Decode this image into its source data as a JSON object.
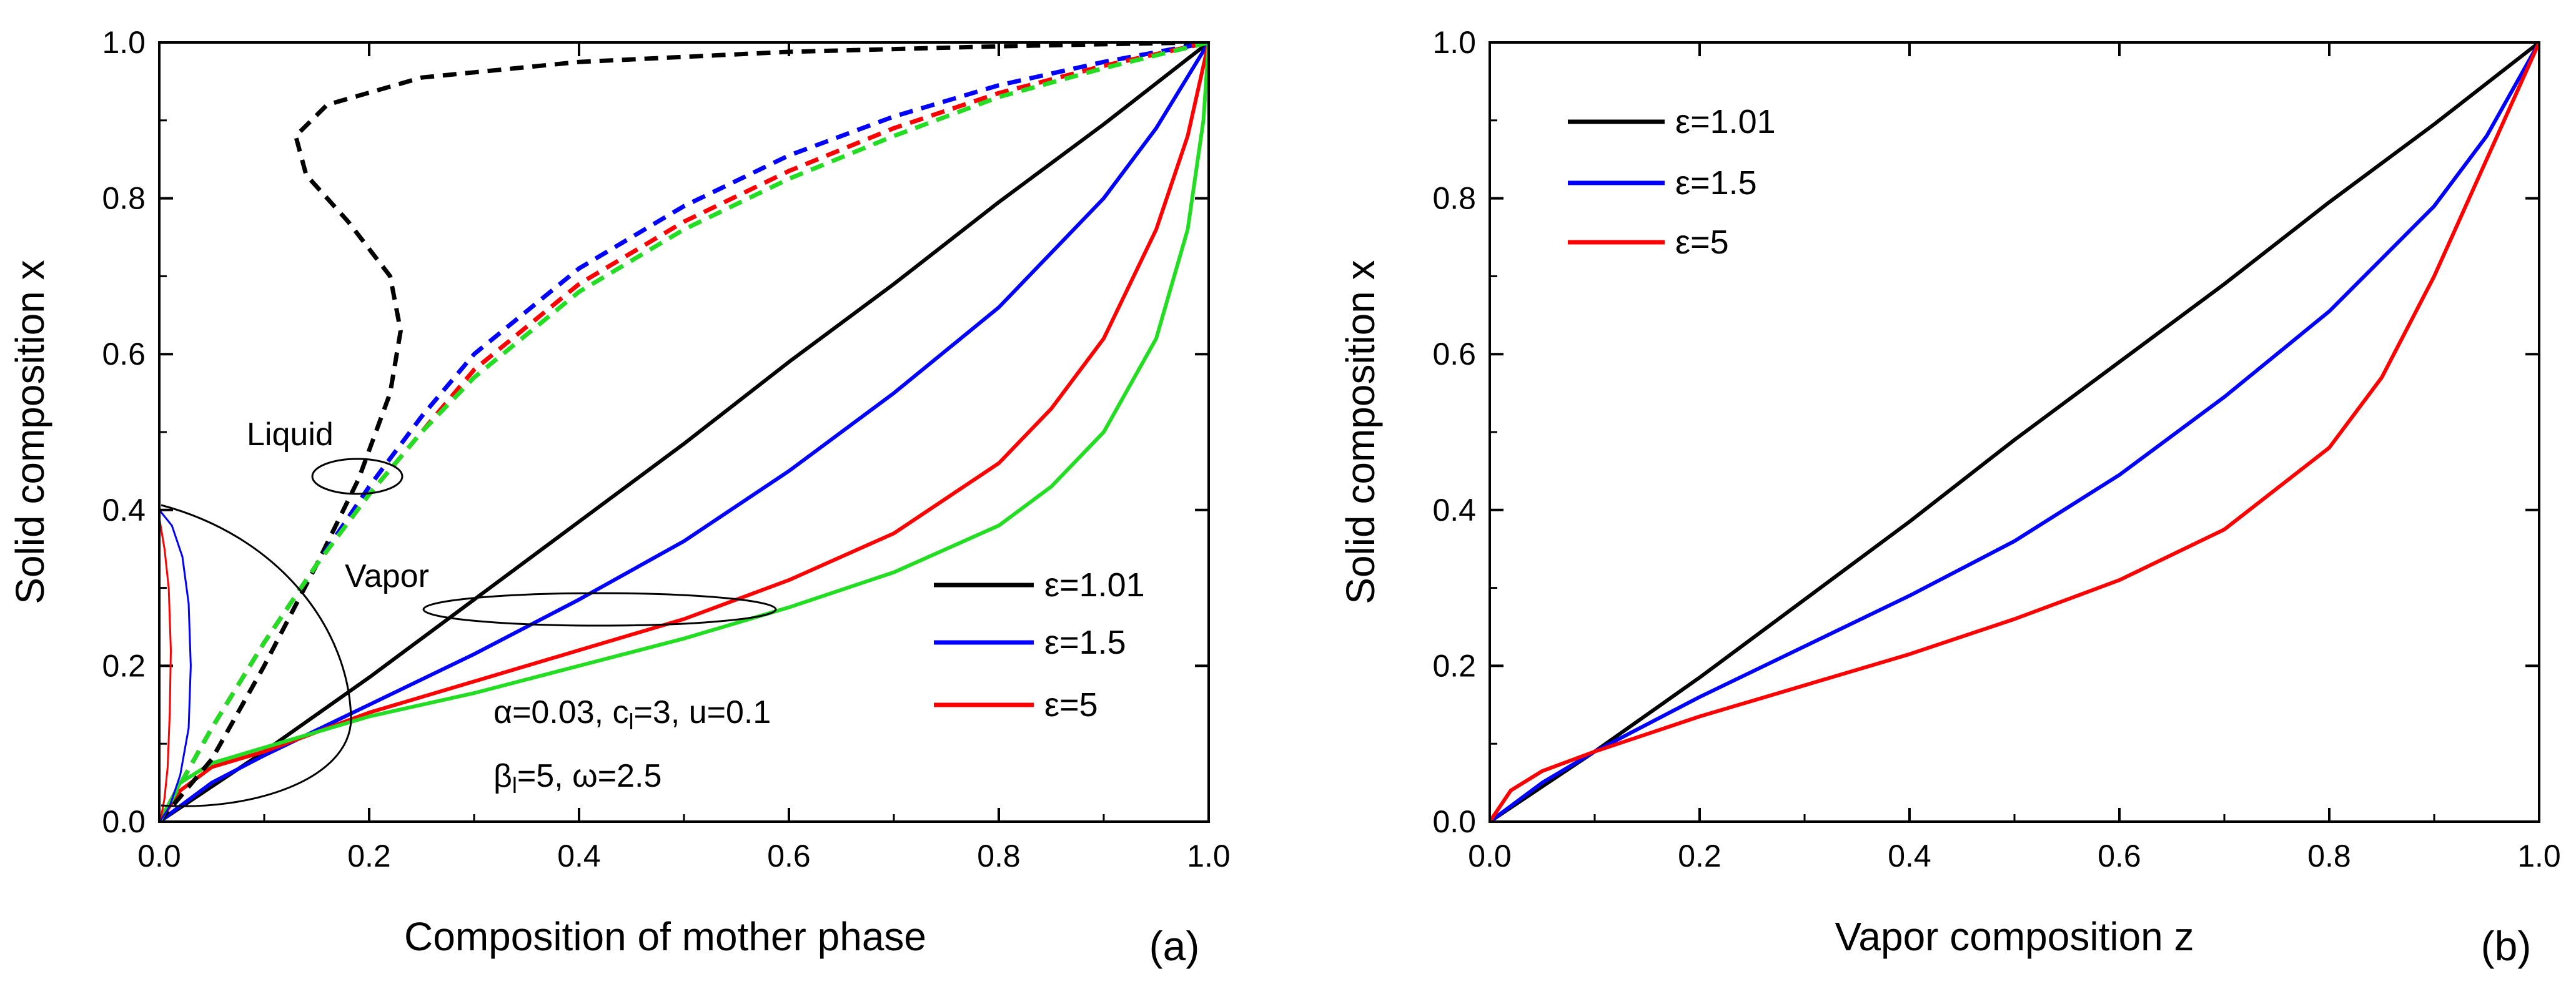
{
  "chart_data": [
    {
      "panel": "a",
      "type": "line",
      "panel_label": "(a)",
      "xlabel": "Composition of mother phase",
      "ylabel": "Solid composition x",
      "xlim": [
        0.0,
        1.0
      ],
      "ylim": [
        0.0,
        1.0
      ],
      "xticks": [
        "0.0",
        "0.2",
        "0.4",
        "0.6",
        "0.8",
        "1.0"
      ],
      "yticks": [
        "0.0",
        "0.2",
        "0.4",
        "0.6",
        "0.8",
        "1.0"
      ],
      "legend": {
        "position": "lower-right",
        "entries": [
          {
            "label": "ε=1.01",
            "color": "#000000"
          },
          {
            "label": "ε=1.5",
            "color": "#0000ff"
          },
          {
            "label": "ε=5",
            "color": "#ff0000"
          }
        ]
      },
      "annotations": {
        "liquid": "Liquid",
        "vapor": "Vapor",
        "params_line1": {
          "pre": "α=0.03, c",
          "sub": "l",
          "post": "=3, u=0.1"
        },
        "params_line2": {
          "pre": "β",
          "sub": "l",
          "post": "=5, ω=2.5"
        }
      },
      "series": [
        {
          "name": "Vapor ε=1.01",
          "style": "solid",
          "color": "#000000",
          "x": [
            0,
            0.05,
            0.1,
            0.2,
            0.3,
            0.4,
            0.5,
            0.6,
            0.7,
            0.8,
            0.9,
            1.0
          ],
          "y": [
            0,
            0.045,
            0.09,
            0.185,
            0.285,
            0.385,
            0.485,
            0.59,
            0.69,
            0.795,
            0.895,
            1.0
          ]
        },
        {
          "name": "Vapor ε=1.5",
          "style": "solid",
          "color": "#0000ff",
          "x": [
            0,
            0.05,
            0.1,
            0.2,
            0.3,
            0.4,
            0.5,
            0.6,
            0.7,
            0.8,
            0.9,
            0.95,
            1.0
          ],
          "y": [
            0,
            0.05,
            0.085,
            0.15,
            0.215,
            0.285,
            0.36,
            0.45,
            0.55,
            0.66,
            0.8,
            0.89,
            1.0
          ]
        },
        {
          "name": "Vapor ε=5",
          "style": "solid",
          "color": "#ff0000",
          "x": [
            0,
            0.02,
            0.05,
            0.1,
            0.2,
            0.3,
            0.4,
            0.5,
            0.6,
            0.7,
            0.8,
            0.85,
            0.9,
            0.95,
            0.98,
            1.0
          ],
          "y": [
            0,
            0.04,
            0.07,
            0.09,
            0.14,
            0.18,
            0.22,
            0.26,
            0.31,
            0.37,
            0.46,
            0.53,
            0.62,
            0.76,
            0.88,
            1.0
          ]
        },
        {
          "name": "Vapor green",
          "style": "solid",
          "color": "#22dd22",
          "x": [
            0,
            0.02,
            0.05,
            0.1,
            0.2,
            0.3,
            0.4,
            0.5,
            0.6,
            0.7,
            0.8,
            0.85,
            0.9,
            0.95,
            0.98,
            0.995,
            1.0
          ],
          "y": [
            0,
            0.05,
            0.075,
            0.095,
            0.135,
            0.165,
            0.2,
            0.235,
            0.275,
            0.32,
            0.38,
            0.43,
            0.5,
            0.62,
            0.76,
            0.9,
            1.0
          ]
        },
        {
          "name": "Liquid ε=1.01",
          "style": "dashed",
          "color": "#000000",
          "x": [
            0,
            0.05,
            0.1,
            0.15,
            0.19,
            0.22,
            0.23,
            0.22,
            0.18,
            0.14,
            0.13,
            0.16,
            0.25,
            0.4,
            0.6,
            0.8,
            0.95,
            1.0
          ],
          "y": [
            0,
            0.08,
            0.2,
            0.33,
            0.44,
            0.55,
            0.63,
            0.7,
            0.77,
            0.83,
            0.88,
            0.92,
            0.955,
            0.975,
            0.988,
            0.995,
            0.999,
            1.0
          ]
        },
        {
          "name": "Liquid ε=1.5",
          "style": "dashed",
          "color": "#0000ff",
          "x": [
            0,
            0.05,
            0.1,
            0.15,
            0.2,
            0.25,
            0.3,
            0.4,
            0.5,
            0.6,
            0.7,
            0.8,
            0.9,
            1.0
          ],
          "y": [
            0,
            0.12,
            0.23,
            0.33,
            0.43,
            0.52,
            0.6,
            0.71,
            0.79,
            0.855,
            0.905,
            0.945,
            0.975,
            1.0
          ]
        },
        {
          "name": "Liquid ε=5",
          "style": "dashed",
          "color": "#ff0000",
          "x": [
            0,
            0.05,
            0.1,
            0.15,
            0.2,
            0.25,
            0.3,
            0.4,
            0.5,
            0.6,
            0.7,
            0.8,
            0.9,
            1.0
          ],
          "y": [
            0,
            0.12,
            0.23,
            0.33,
            0.42,
            0.5,
            0.58,
            0.69,
            0.77,
            0.835,
            0.89,
            0.935,
            0.97,
            1.0
          ]
        },
        {
          "name": "Liquid green",
          "style": "dashed",
          "color": "#22dd22",
          "x": [
            0,
            0.05,
            0.1,
            0.15,
            0.2,
            0.25,
            0.3,
            0.4,
            0.5,
            0.6,
            0.7,
            0.8,
            0.9,
            1.0
          ],
          "y": [
            0,
            0.12,
            0.23,
            0.33,
            0.42,
            0.5,
            0.57,
            0.68,
            0.76,
            0.825,
            0.88,
            0.93,
            0.967,
            1.0
          ]
        },
        {
          "name": "Inset blue",
          "style": "thin",
          "color": "#0000ff",
          "x": [
            0,
            0.012,
            0.022,
            0.028,
            0.03,
            0.028,
            0.02,
            0.01,
            0.003,
            0
          ],
          "y": [
            0.4,
            0.38,
            0.34,
            0.28,
            0.2,
            0.12,
            0.06,
            0.02,
            0.005,
            0
          ]
        },
        {
          "name": "Inset red",
          "style": "thin",
          "color": "#ff0000",
          "x": [
            0,
            0.005,
            0.009,
            0.011,
            0.01,
            0.008,
            0.005,
            0.002,
            0
          ],
          "y": [
            0.39,
            0.35,
            0.3,
            0.22,
            0.14,
            0.07,
            0.03,
            0.008,
            0
          ]
        }
      ]
    },
    {
      "panel": "b",
      "type": "line",
      "panel_label": "(b)",
      "xlabel": "Vapor composition z",
      "ylabel": "Solid composition x",
      "xlim": [
        0.0,
        1.0
      ],
      "ylim": [
        0.0,
        1.0
      ],
      "xticks": [
        "0.0",
        "0.2",
        "0.4",
        "0.6",
        "0.8",
        "1.0"
      ],
      "yticks": [
        "0.0",
        "0.2",
        "0.4",
        "0.6",
        "0.8",
        "1.0"
      ],
      "legend": {
        "position": "top-left",
        "entries": [
          {
            "label": "ε=1.01",
            "color": "#000000"
          },
          {
            "label": "ε=1.5",
            "color": "#0000ff"
          },
          {
            "label": "ε=5",
            "color": "#ff0000"
          }
        ]
      },
      "series": [
        {
          "name": "ε=1.01",
          "style": "solid",
          "color": "#000000",
          "x": [
            0,
            0.05,
            0.1,
            0.2,
            0.3,
            0.4,
            0.5,
            0.6,
            0.7,
            0.8,
            0.9,
            1.0
          ],
          "y": [
            0,
            0.045,
            0.09,
            0.185,
            0.285,
            0.385,
            0.49,
            0.59,
            0.69,
            0.795,
            0.895,
            1.0
          ]
        },
        {
          "name": "ε=1.5",
          "style": "solid",
          "color": "#0000ff",
          "x": [
            0,
            0.05,
            0.1,
            0.2,
            0.3,
            0.4,
            0.5,
            0.6,
            0.7,
            0.8,
            0.9,
            0.95,
            1.0
          ],
          "y": [
            0,
            0.05,
            0.09,
            0.16,
            0.225,
            0.29,
            0.36,
            0.445,
            0.545,
            0.655,
            0.79,
            0.88,
            1.0
          ]
        },
        {
          "name": "ε=5",
          "style": "solid",
          "color": "#ff0000",
          "x": [
            0,
            0.02,
            0.05,
            0.1,
            0.2,
            0.3,
            0.4,
            0.5,
            0.6,
            0.7,
            0.8,
            0.85,
            0.9,
            0.95,
            0.98,
            1.0
          ],
          "y": [
            0,
            0.04,
            0.065,
            0.09,
            0.135,
            0.175,
            0.215,
            0.26,
            0.31,
            0.375,
            0.48,
            0.57,
            0.7,
            0.85,
            0.94,
            1.0
          ]
        }
      ]
    }
  ]
}
